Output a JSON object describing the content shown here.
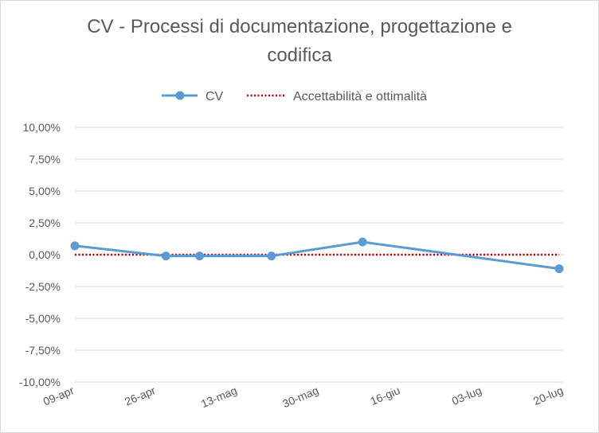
{
  "chart_data": {
    "type": "line",
    "title": "CV - Processi di documentazione, progettazione e codifica",
    "xlabel": "",
    "ylabel": "",
    "x_ticks": [
      "09-apr",
      "26-apr",
      "13-mag",
      "30-mag",
      "16-giu",
      "03-lug",
      "20-lug"
    ],
    "x_range": [
      "2017-04-09",
      "2017-07-20"
    ],
    "y_ticks": [
      "10,00%",
      "7,50%",
      "5,00%",
      "2,50%",
      "0,00%",
      "-2,50%",
      "-5,00%",
      "-7,50%",
      "-10,00%"
    ],
    "ylim": [
      -10,
      10
    ],
    "grid": true,
    "legend_position": "top",
    "series": [
      {
        "name": "CV",
        "color": "#5b9bd5",
        "style": "line-with-markers",
        "points": [
          {
            "x": "2017-04-09",
            "y": 0.7
          },
          {
            "x": "2017-04-28",
            "y": -0.1
          },
          {
            "x": "2017-05-05",
            "y": -0.1
          },
          {
            "x": "2017-05-20",
            "y": -0.1
          },
          {
            "x": "2017-06-08",
            "y": 1.0
          },
          {
            "x": "2017-07-19",
            "y": -1.1
          }
        ]
      },
      {
        "name": "Accettabilità e ottimalità",
        "color": "#c00000",
        "style": "dotted",
        "points": [
          {
            "x": "2017-04-09",
            "y": 0
          },
          {
            "x": "2017-07-19",
            "y": 0
          }
        ]
      }
    ]
  }
}
